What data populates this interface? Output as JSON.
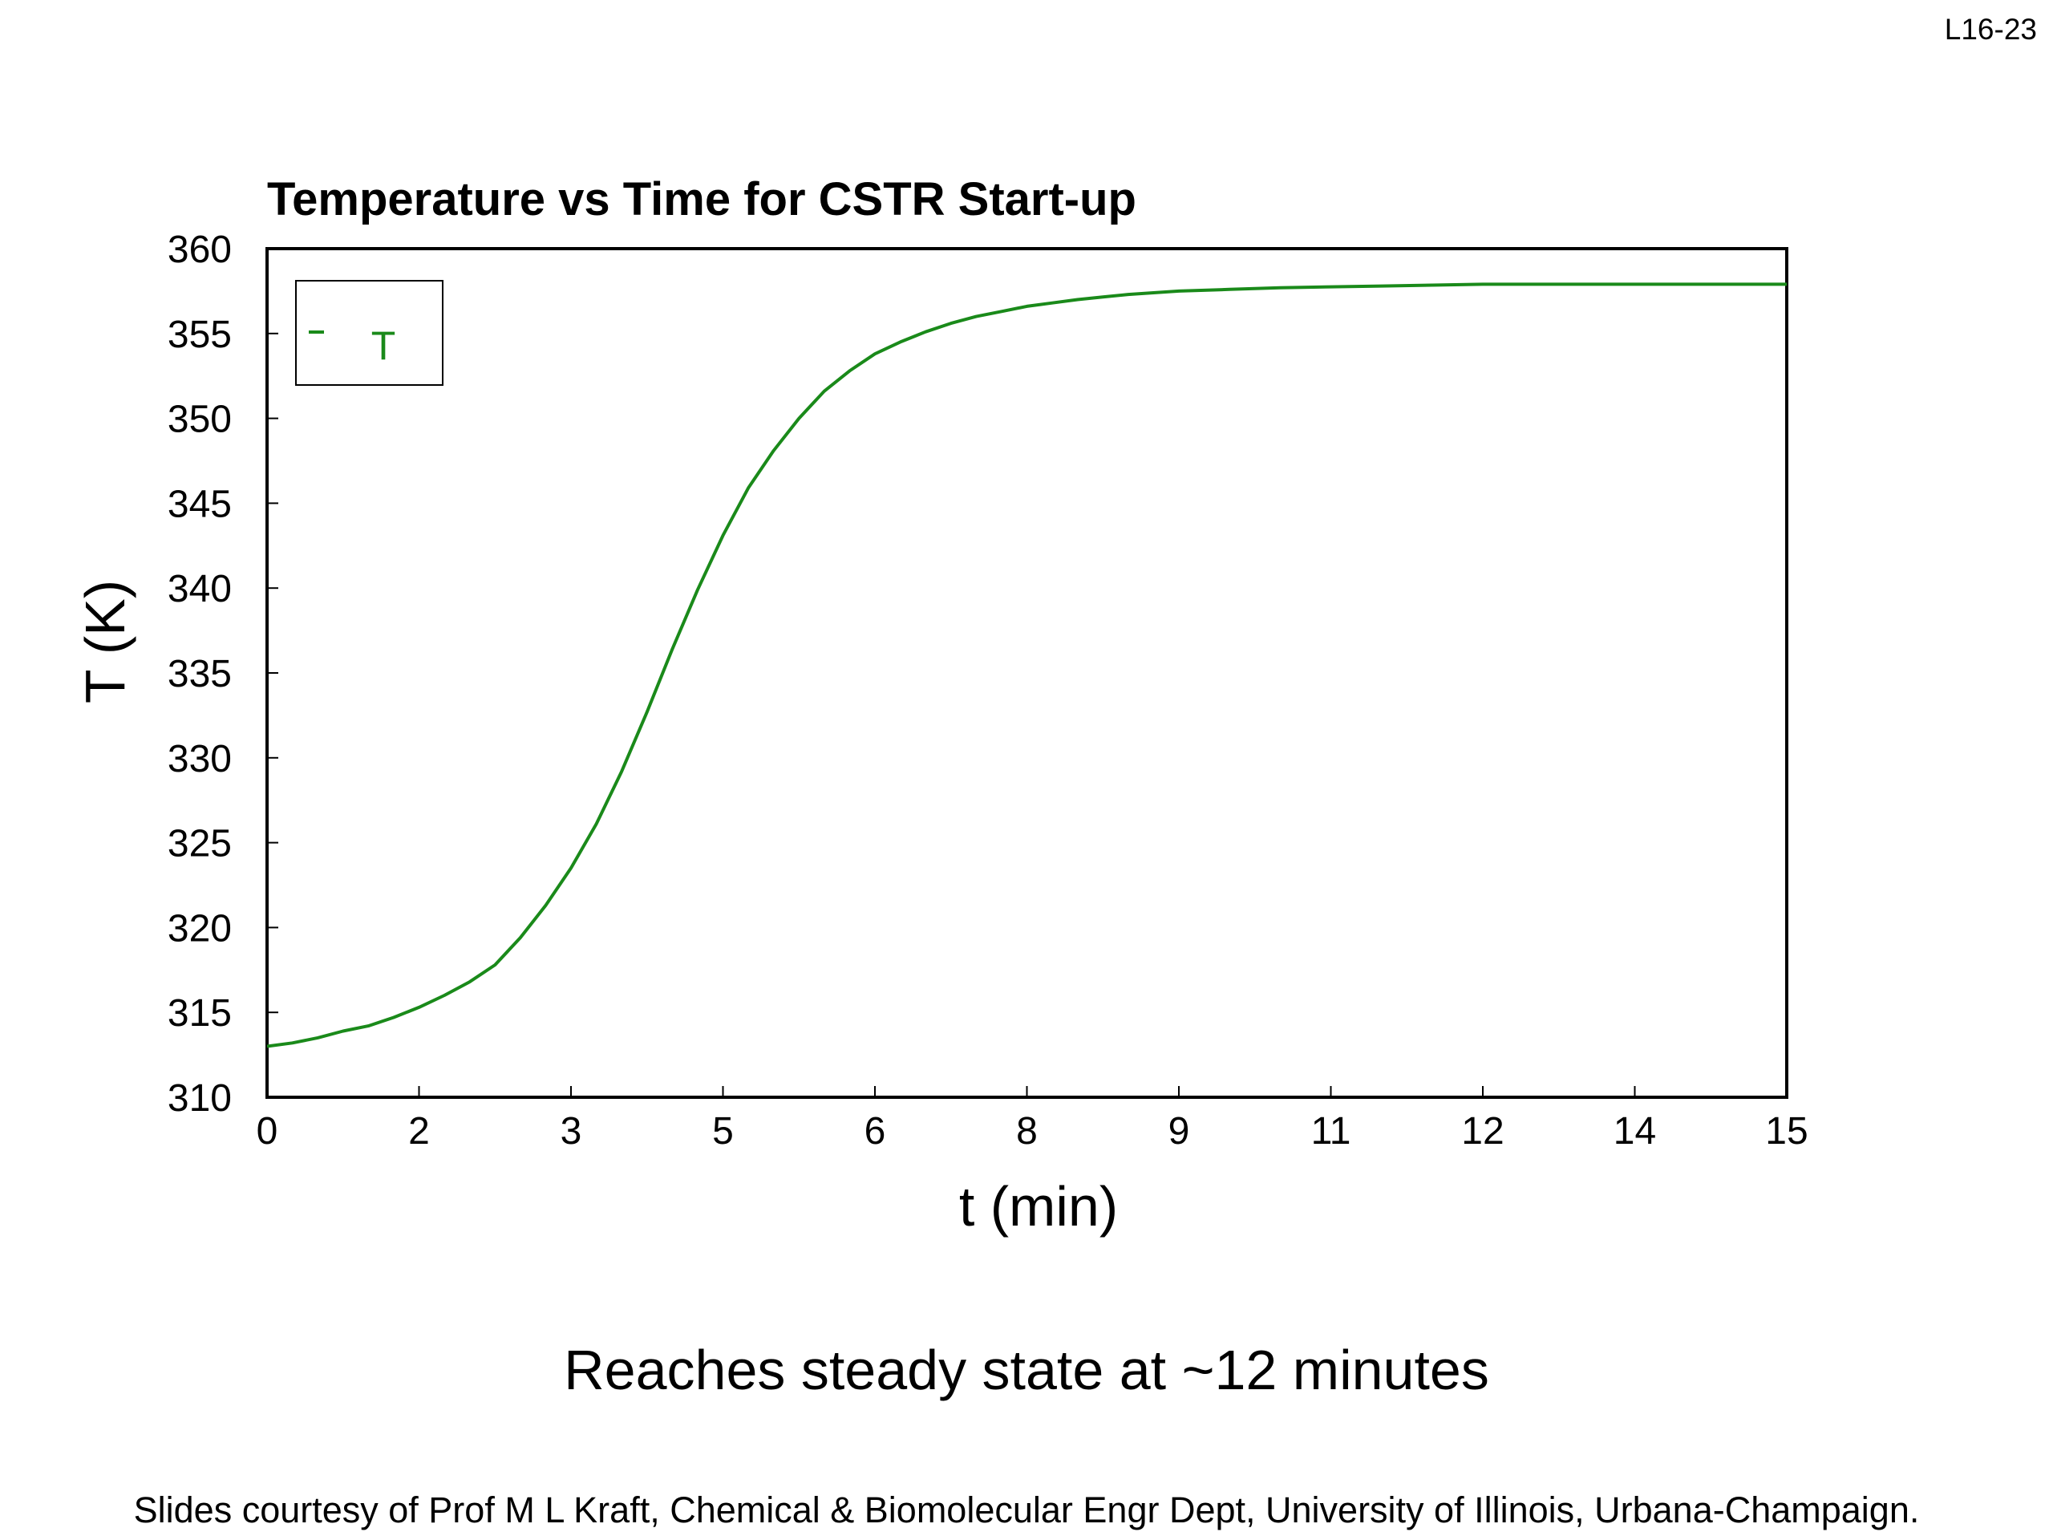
{
  "slide": {
    "number": "L16-23",
    "caption": "Reaches steady state at ~12 minutes",
    "credit": "Slides courtesy of Prof M L Kraft, Chemical & Biomolecular Engr Dept, University of Illinois, Urbana-Champaign."
  },
  "chart_data": {
    "type": "line",
    "title": "Temperature vs Time for CSTR Start-up",
    "xlabel": "t (min)",
    "ylabel": "T (K)",
    "xlim": [
      0,
      15
    ],
    "ylim": [
      310,
      360
    ],
    "x_tick_values": [
      0,
      1.5,
      3,
      4.5,
      6,
      7.5,
      9,
      10.5,
      12,
      13.5,
      15
    ],
    "x_tick_labels": [
      "0",
      "2",
      "3",
      "5",
      "6",
      "8",
      "9",
      "11",
      "12",
      "14",
      "15"
    ],
    "y_ticks": [
      310,
      315,
      320,
      325,
      330,
      335,
      340,
      345,
      350,
      355,
      360
    ],
    "grid": false,
    "legend": {
      "position": "top-left",
      "entries": [
        "T"
      ]
    },
    "series": [
      {
        "name": "T",
        "color": "#1a8a1a",
        "x": [
          0,
          0.25,
          0.5,
          0.75,
          1.0,
          1.25,
          1.5,
          1.75,
          2.0,
          2.25,
          2.5,
          2.75,
          3.0,
          3.25,
          3.5,
          3.75,
          4.0,
          4.25,
          4.5,
          4.75,
          5.0,
          5.25,
          5.5,
          5.75,
          6.0,
          6.25,
          6.5,
          6.75,
          7.0,
          7.25,
          7.5,
          7.75,
          8.0,
          8.25,
          8.5,
          8.75,
          9.0,
          9.5,
          10.0,
          10.5,
          11.0,
          11.5,
          12.0,
          13.0,
          14.0,
          15.0
        ],
        "y": [
          313.0,
          313.2,
          313.5,
          313.9,
          314.2,
          314.7,
          315.3,
          316.0,
          316.8,
          317.8,
          319.4,
          321.3,
          323.5,
          326.1,
          329.2,
          332.7,
          336.4,
          339.9,
          343.1,
          345.9,
          348.1,
          350.0,
          351.6,
          352.8,
          353.8,
          354.5,
          355.1,
          355.6,
          356.0,
          356.3,
          356.6,
          356.8,
          357.0,
          357.15,
          357.3,
          357.4,
          357.5,
          357.6,
          357.7,
          357.75,
          357.8,
          357.85,
          357.9,
          357.9,
          357.9,
          357.9
        ]
      }
    ]
  }
}
